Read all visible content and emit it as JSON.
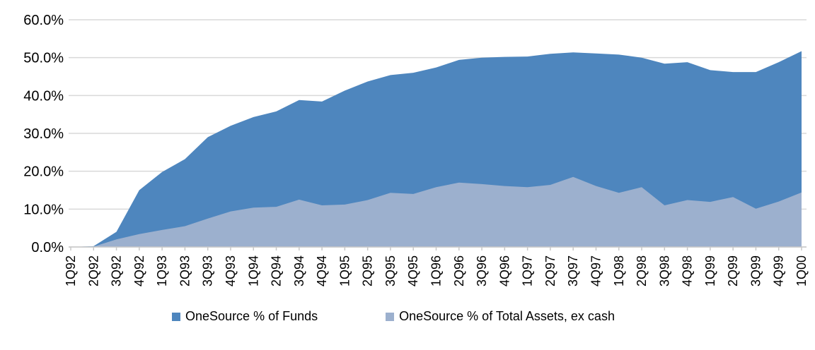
{
  "chart_data": {
    "type": "area",
    "title": "",
    "categories": [
      "1Q92",
      "2Q92",
      "3Q92",
      "4Q92",
      "1Q93",
      "2Q93",
      "3Q93",
      "4Q93",
      "1Q94",
      "2Q94",
      "3Q94",
      "4Q94",
      "1Q95",
      "2Q95",
      "3Q95",
      "4Q95",
      "1Q96",
      "2Q96",
      "3Q96",
      "4Q96",
      "1Q97",
      "2Q97",
      "3Q97",
      "4Q97",
      "1Q98",
      "2Q98",
      "3Q98",
      "4Q98",
      "1Q99",
      "2Q99",
      "3Q99",
      "4Q99",
      "1Q00"
    ],
    "series": [
      {
        "name": "OneSource % of Funds",
        "color": "#4E86BE",
        "values": [
          0,
          0.2,
          4.0,
          15.0,
          19.8,
          23.2,
          29.0,
          32.0,
          34.3,
          35.8,
          38.8,
          38.4,
          41.3,
          43.7,
          45.4,
          46.0,
          47.4,
          49.4,
          50.0,
          50.2,
          50.3,
          51.0,
          51.4,
          51.1,
          50.8,
          50.0,
          48.4,
          48.8,
          46.7,
          46.2,
          46.2,
          48.8,
          51.7
        ]
      },
      {
        "name": "OneSource % of Total Assets, ex cash",
        "color": "#9CB0CE",
        "values": [
          0,
          0.1,
          2.0,
          3.4,
          4.5,
          5.5,
          7.5,
          9.4,
          10.4,
          10.6,
          12.5,
          11.0,
          11.2,
          12.4,
          14.3,
          14.0,
          15.8,
          17.0,
          16.6,
          16.1,
          15.8,
          16.4,
          18.5,
          16.1,
          14.3,
          15.8,
          11.0,
          12.4,
          11.9,
          13.2,
          10.1,
          12.0,
          14.4
        ]
      }
    ],
    "xlabel": "",
    "ylabel": "",
    "ylim": [
      0,
      60
    ],
    "ytick_step": 10,
    "ytick_labels": [
      "0.0%",
      "10.0%",
      "20.0%",
      "30.0%",
      "40.0%",
      "50.0%",
      "60.0%"
    ],
    "grid": true,
    "legend_position": "bottom",
    "series_overlap": "overlapping (not stacked): Funds area drawn behind, Assets area drawn in front from zero baseline"
  },
  "colors": {
    "background": "#FFFFFF",
    "gridline": "#D9D9D9",
    "axis_line": "#C8C8C8",
    "tick_mark": "#C8C8C8",
    "label_text": "#000000"
  }
}
